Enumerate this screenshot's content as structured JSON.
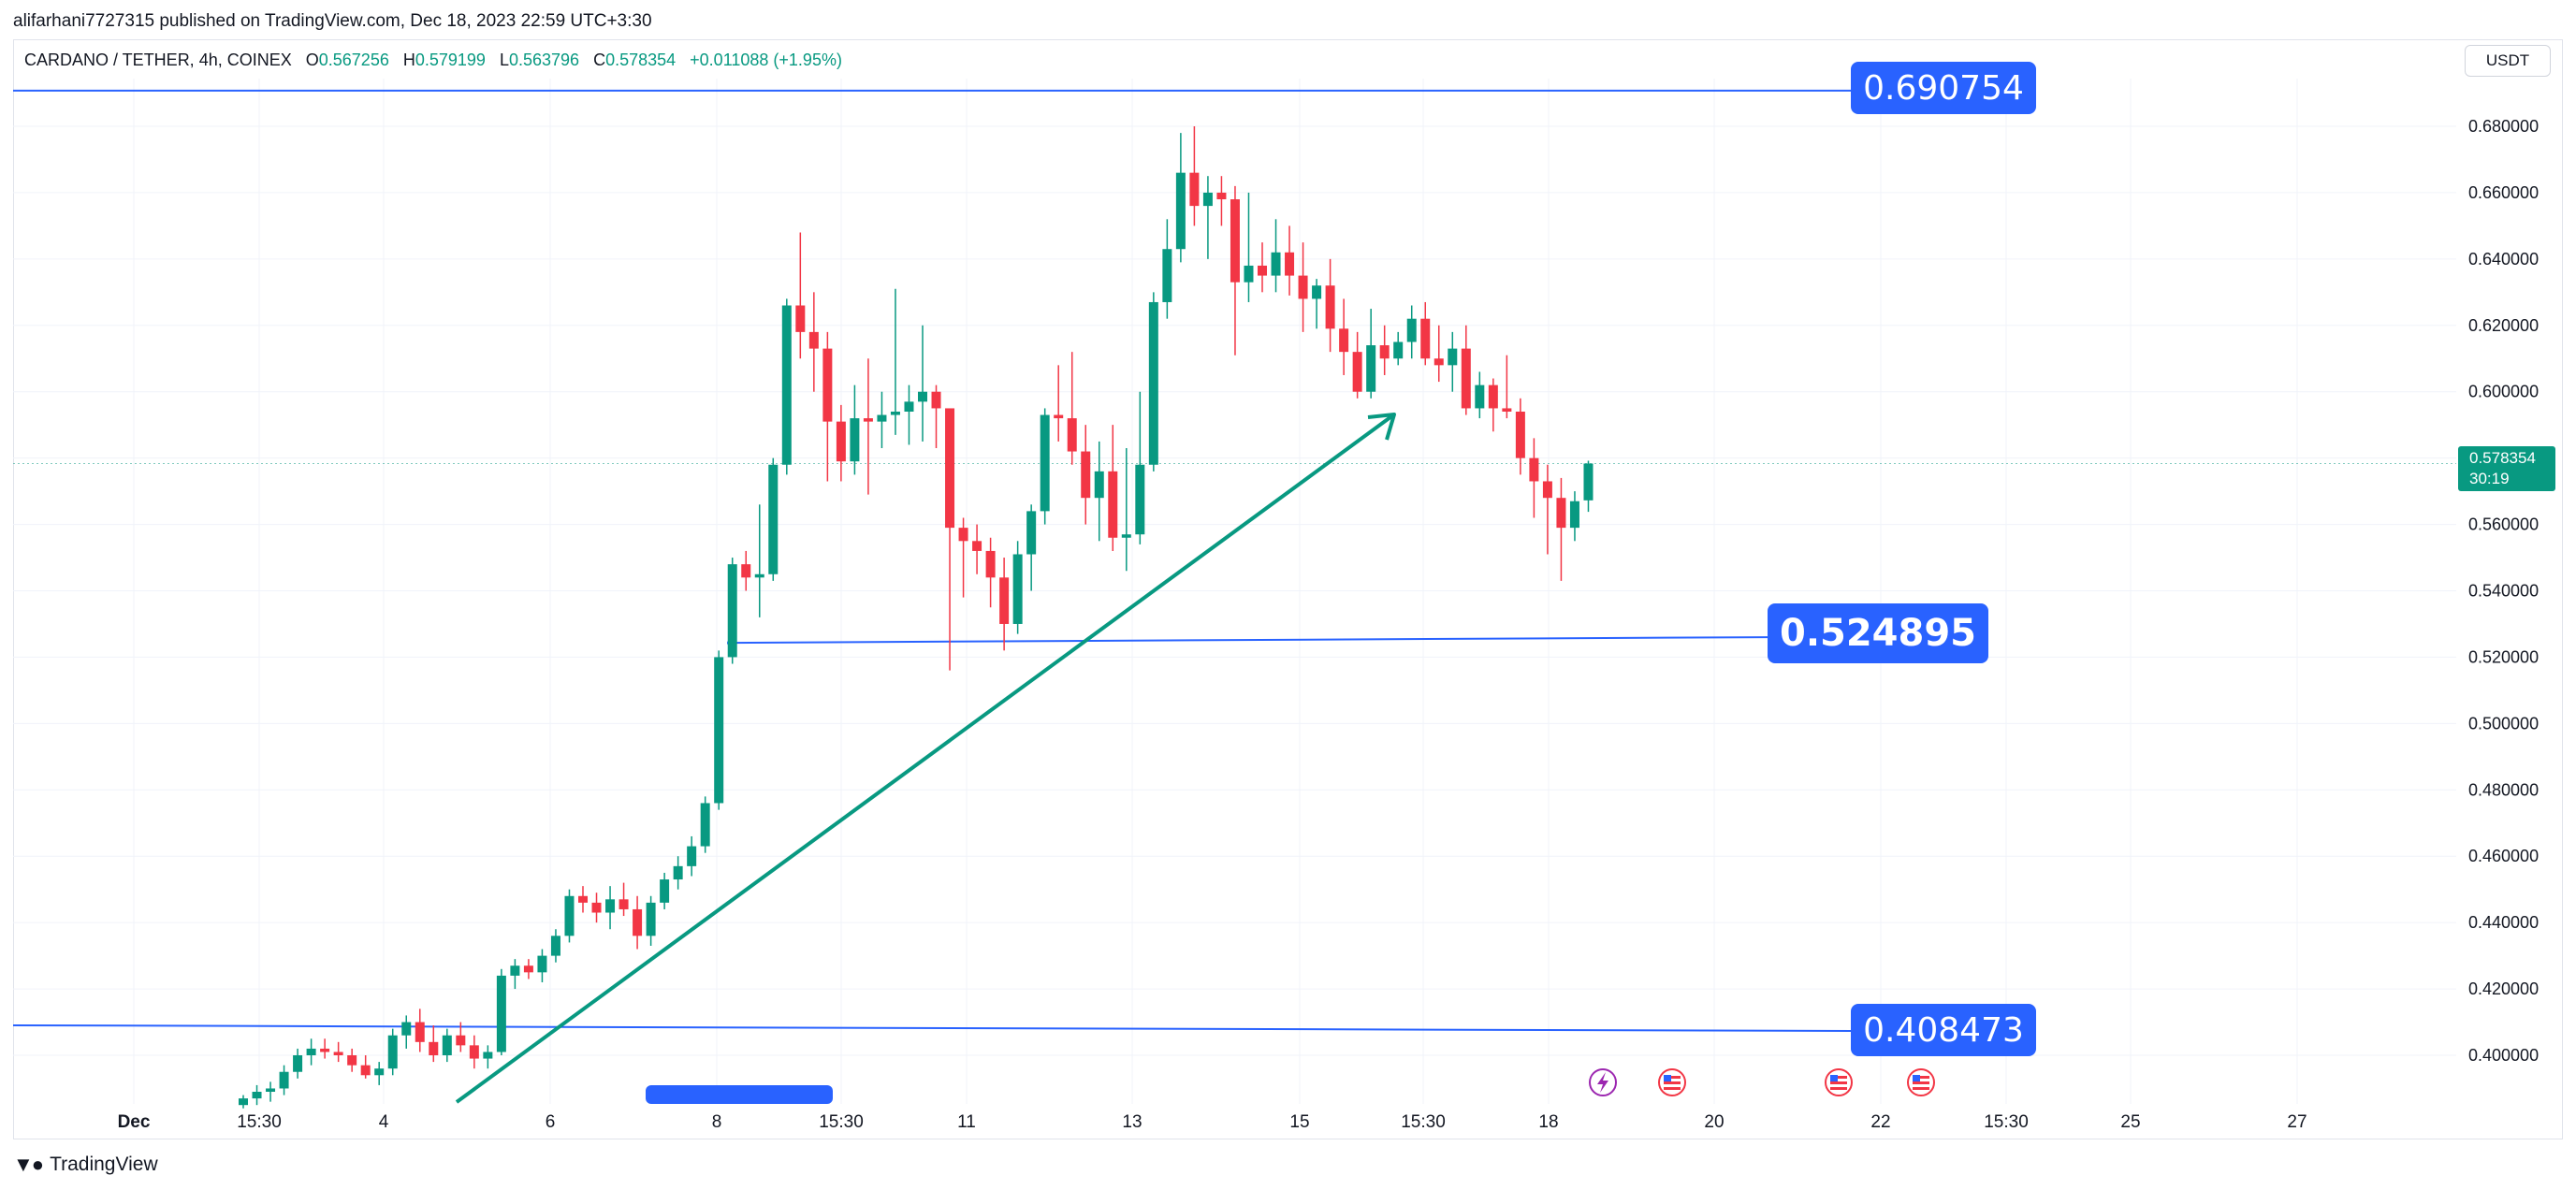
{
  "header": {
    "published": "alifarhani7727315 published on TradingView.com, Dec 18, 2023 22:59 UTC+3:30"
  },
  "legend": {
    "symbol": "CARDANO / TETHER, 4h, COINEX",
    "o_label": "O",
    "o": "0.567256",
    "h_label": "H",
    "h": "0.579199",
    "l_label": "L",
    "l": "0.563796",
    "c_label": "C",
    "c": "0.578354",
    "change": "+0.011088 (+1.95%)"
  },
  "currency_button": "USDT",
  "last_price": {
    "value": "0.578354",
    "countdown": "30:19"
  },
  "footer": {
    "brand": "TradingView",
    "logo_icon": "tradingview-logo-icon"
  },
  "colors": {
    "up": "#089981",
    "down": "#f23645",
    "drawing": "#2962ff",
    "trend": "#089981"
  },
  "chart_data": {
    "type": "candlestick",
    "ylim": [
      0.39,
      0.685
    ],
    "y_ticks": [
      "0.680000",
      "0.660000",
      "0.640000",
      "0.620000",
      "0.600000",
      "0.580000",
      "0.560000",
      "0.540000",
      "0.520000",
      "0.500000",
      "0.480000",
      "0.460000",
      "0.440000",
      "0.420000",
      "0.400000"
    ],
    "x_ticks": [
      "Dec",
      "15:30",
      "4",
      "6",
      "8",
      "15:30",
      "11",
      "13",
      "15",
      "15:30",
      "18",
      "20",
      "22",
      "15:30",
      "25",
      "27"
    ],
    "candles": [
      [
        0.385,
        0.388,
        0.384,
        0.387
      ],
      [
        0.387,
        0.391,
        0.385,
        0.389
      ],
      [
        0.389,
        0.392,
        0.386,
        0.39
      ],
      [
        0.39,
        0.397,
        0.388,
        0.395
      ],
      [
        0.395,
        0.402,
        0.393,
        0.4
      ],
      [
        0.4,
        0.405,
        0.397,
        0.402
      ],
      [
        0.402,
        0.405,
        0.399,
        0.401
      ],
      [
        0.401,
        0.404,
        0.398,
        0.4
      ],
      [
        0.4,
        0.402,
        0.395,
        0.397
      ],
      [
        0.397,
        0.4,
        0.393,
        0.394
      ],
      [
        0.394,
        0.398,
        0.391,
        0.396
      ],
      [
        0.396,
        0.408,
        0.394,
        0.406
      ],
      [
        0.406,
        0.412,
        0.402,
        0.41
      ],
      [
        0.41,
        0.414,
        0.401,
        0.404
      ],
      [
        0.404,
        0.409,
        0.398,
        0.4
      ],
      [
        0.4,
        0.408,
        0.398,
        0.406
      ],
      [
        0.406,
        0.41,
        0.401,
        0.403
      ],
      [
        0.403,
        0.406,
        0.396,
        0.399
      ],
      [
        0.399,
        0.403,
        0.396,
        0.401
      ],
      [
        0.401,
        0.426,
        0.4,
        0.424
      ],
      [
        0.424,
        0.429,
        0.42,
        0.427
      ],
      [
        0.427,
        0.429,
        0.423,
        0.425
      ],
      [
        0.425,
        0.432,
        0.422,
        0.43
      ],
      [
        0.43,
        0.438,
        0.428,
        0.436
      ],
      [
        0.436,
        0.45,
        0.434,
        0.448
      ],
      [
        0.448,
        0.451,
        0.443,
        0.446
      ],
      [
        0.446,
        0.449,
        0.44,
        0.443
      ],
      [
        0.443,
        0.451,
        0.438,
        0.447
      ],
      [
        0.447,
        0.452,
        0.442,
        0.444
      ],
      [
        0.444,
        0.448,
        0.432,
        0.436
      ],
      [
        0.436,
        0.448,
        0.433,
        0.446
      ],
      [
        0.446,
        0.455,
        0.444,
        0.453
      ],
      [
        0.453,
        0.46,
        0.45,
        0.457
      ],
      [
        0.457,
        0.466,
        0.454,
        0.463
      ],
      [
        0.463,
        0.478,
        0.461,
        0.476
      ],
      [
        0.476,
        0.522,
        0.474,
        0.52
      ],
      [
        0.52,
        0.55,
        0.518,
        0.548
      ],
      [
        0.548,
        0.552,
        0.54,
        0.544
      ],
      [
        0.544,
        0.566,
        0.532,
        0.545
      ],
      [
        0.545,
        0.58,
        0.543,
        0.578
      ],
      [
        0.578,
        0.628,
        0.575,
        0.626
      ],
      [
        0.626,
        0.648,
        0.61,
        0.618
      ],
      [
        0.618,
        0.63,
        0.6,
        0.613
      ],
      [
        0.613,
        0.618,
        0.573,
        0.591
      ],
      [
        0.591,
        0.596,
        0.573,
        0.579
      ],
      [
        0.579,
        0.602,
        0.575,
        0.592
      ],
      [
        0.592,
        0.61,
        0.569,
        0.591
      ],
      [
        0.591,
        0.6,
        0.583,
        0.593
      ],
      [
        0.593,
        0.631,
        0.587,
        0.594
      ],
      [
        0.594,
        0.602,
        0.584,
        0.597
      ],
      [
        0.597,
        0.62,
        0.585,
        0.6
      ],
      [
        0.6,
        0.602,
        0.583,
        0.595
      ],
      [
        0.595,
        0.593,
        0.516,
        0.559
      ],
      [
        0.559,
        0.562,
        0.538,
        0.555
      ],
      [
        0.555,
        0.56,
        0.545,
        0.552
      ],
      [
        0.552,
        0.556,
        0.535,
        0.544
      ],
      [
        0.544,
        0.55,
        0.522,
        0.53
      ],
      [
        0.53,
        0.555,
        0.527,
        0.551
      ],
      [
        0.551,
        0.566,
        0.54,
        0.564
      ],
      [
        0.564,
        0.595,
        0.56,
        0.593
      ],
      [
        0.593,
        0.608,
        0.585,
        0.592
      ],
      [
        0.592,
        0.612,
        0.578,
        0.582
      ],
      [
        0.582,
        0.59,
        0.56,
        0.568
      ],
      [
        0.568,
        0.585,
        0.555,
        0.576
      ],
      [
        0.576,
        0.59,
        0.552,
        0.556
      ],
      [
        0.556,
        0.583,
        0.546,
        0.557
      ],
      [
        0.557,
        0.6,
        0.554,
        0.578
      ],
      [
        0.578,
        0.63,
        0.576,
        0.627
      ],
      [
        0.627,
        0.652,
        0.622,
        0.643
      ],
      [
        0.643,
        0.678,
        0.639,
        0.666
      ],
      [
        0.666,
        0.68,
        0.65,
        0.656
      ],
      [
        0.656,
        0.665,
        0.64,
        0.66
      ],
      [
        0.66,
        0.665,
        0.65,
        0.658
      ],
      [
        0.658,
        0.662,
        0.611,
        0.633
      ],
      [
        0.633,
        0.66,
        0.627,
        0.638
      ],
      [
        0.638,
        0.645,
        0.63,
        0.635
      ],
      [
        0.635,
        0.652,
        0.63,
        0.642
      ],
      [
        0.642,
        0.65,
        0.629,
        0.635
      ],
      [
        0.635,
        0.645,
        0.618,
        0.628
      ],
      [
        0.628,
        0.634,
        0.619,
        0.632
      ],
      [
        0.632,
        0.64,
        0.612,
        0.619
      ],
      [
        0.619,
        0.628,
        0.605,
        0.612
      ],
      [
        0.612,
        0.618,
        0.598,
        0.6
      ],
      [
        0.6,
        0.625,
        0.598,
        0.614
      ],
      [
        0.614,
        0.62,
        0.605,
        0.61
      ],
      [
        0.61,
        0.618,
        0.608,
        0.615
      ],
      [
        0.615,
        0.626,
        0.61,
        0.622
      ],
      [
        0.622,
        0.627,
        0.608,
        0.61
      ],
      [
        0.61,
        0.62,
        0.603,
        0.608
      ],
      [
        0.608,
        0.618,
        0.6,
        0.613
      ],
      [
        0.613,
        0.62,
        0.593,
        0.595
      ],
      [
        0.595,
        0.606,
        0.592,
        0.602
      ],
      [
        0.602,
        0.604,
        0.588,
        0.595
      ],
      [
        0.595,
        0.611,
        0.592,
        0.594
      ],
      [
        0.594,
        0.598,
        0.575,
        0.58
      ],
      [
        0.58,
        0.586,
        0.562,
        0.573
      ],
      [
        0.573,
        0.578,
        0.551,
        0.568
      ],
      [
        0.568,
        0.574,
        0.543,
        0.559
      ],
      [
        0.559,
        0.57,
        0.555,
        0.567
      ],
      [
        0.567256,
        0.579199,
        0.563796,
        0.578354
      ]
    ],
    "levels": [
      {
        "value": 0.690754,
        "label": "0.690754"
      },
      {
        "value": 0.524895,
        "label": "0.524895"
      },
      {
        "value": 0.408473,
        "label": "0.408473"
      }
    ],
    "last": 0.578354
  }
}
